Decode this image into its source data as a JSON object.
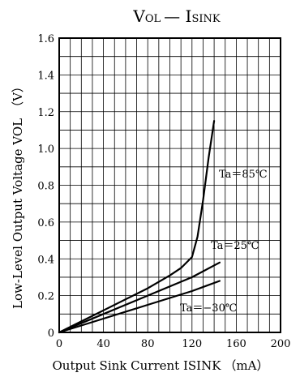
{
  "chart_data": {
    "type": "line",
    "title_main": "V",
    "title_sub1": "OL",
    "title_mid": "— I",
    "title_sub2": "SINK",
    "xlabel_main": "Output Sink Current  I",
    "xlabel_sub": "SINK",
    "xlabel_unit": "（mA）",
    "ylabel_main": "Low-Level Output Voltage  V",
    "ylabel_sub": "OL",
    "ylabel_unit": "（V）",
    "xlim": [
      0,
      200
    ],
    "ylim": [
      0,
      1.6
    ],
    "x_ticks": [
      "0",
      "40",
      "80",
      "120",
      "160",
      "200"
    ],
    "y_ticks": [
      "0",
      "0.2",
      "0.4",
      "0.6",
      "0.8",
      "1.0",
      "1.2",
      "1.4",
      "1.6"
    ],
    "grid": true,
    "series": [
      {
        "name": "Ta＝85℃",
        "x": [
          0,
          20,
          40,
          60,
          80,
          100,
          110,
          120,
          125,
          130,
          135,
          140
        ],
        "y": [
          0,
          0.06,
          0.12,
          0.18,
          0.24,
          0.31,
          0.35,
          0.41,
          0.52,
          0.72,
          0.95,
          1.15
        ]
      },
      {
        "name": "Ta＝25℃",
        "x": [
          0,
          40,
          80,
          120,
          145
        ],
        "y": [
          0,
          0.1,
          0.2,
          0.3,
          0.38
        ]
      },
      {
        "name": "Ta＝−30℃",
        "x": [
          0,
          40,
          80,
          120,
          145
        ],
        "y": [
          0,
          0.075,
          0.15,
          0.225,
          0.28
        ]
      }
    ]
  }
}
